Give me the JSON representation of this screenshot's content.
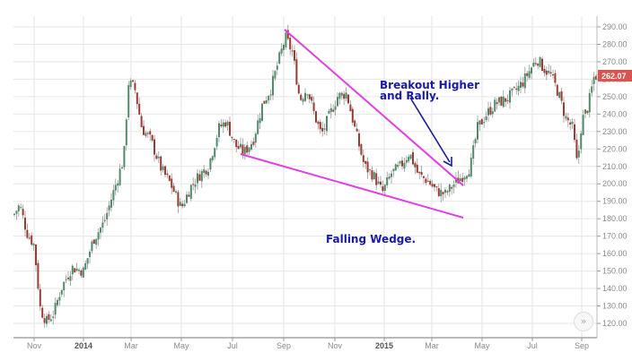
{
  "chart_data": {
    "type": "candlestick",
    "title": "",
    "xlabel": "",
    "ylabel": "",
    "ylim": [
      115,
      295
    ],
    "y_ticks": [
      "290.00",
      "280.00",
      "270.00",
      "260.00",
      "250.00",
      "240.00",
      "230.00",
      "220.00",
      "210.00",
      "200.00",
      "190.00",
      "180.00",
      "170.00",
      "160.00",
      "150.00",
      "140.00",
      "130.00",
      "120.00"
    ],
    "y_tick_values": [
      290,
      280,
      270,
      260,
      250,
      240,
      230,
      220,
      210,
      200,
      190,
      180,
      170,
      160,
      150,
      140,
      130,
      120
    ],
    "x_ticks": [
      {
        "label": "Nov",
        "bold": false
      },
      {
        "label": "2014",
        "bold": true
      },
      {
        "label": "Mar",
        "bold": false
      },
      {
        "label": "May",
        "bold": false
      },
      {
        "label": "Jul",
        "bold": false
      },
      {
        "label": "Sep",
        "bold": false
      },
      {
        "label": "Nov",
        "bold": false
      },
      {
        "label": "2015",
        "bold": true
      },
      {
        "label": "Mar",
        "bold": false
      },
      {
        "label": "May",
        "bold": false
      },
      {
        "label": "Jul",
        "bold": false
      },
      {
        "label": "Sep",
        "bold": false
      }
    ],
    "grid": true,
    "last_price": "262.07",
    "colors": {
      "up": "#4f8a6a",
      "down": "#9b3a30",
      "wedge": "#e040e0",
      "arrow": "#1a1a9a",
      "annotation": "#1a1aa6",
      "last_price_bg": "#d9534f",
      "grid": "#e6e6e6",
      "axis": "#bbbbbb"
    },
    "approx_closes": [
      {
        "date": "2013-10",
        "close": 180
      },
      {
        "date": "2013-11",
        "close": 168
      },
      {
        "date": "2013-12",
        "close": 122
      },
      {
        "date": "2014-01",
        "close": 150
      },
      {
        "date": "2014-02",
        "close": 185
      },
      {
        "date": "2014-03",
        "close": 258
      },
      {
        "date": "2014-04",
        "close": 215
      },
      {
        "date": "2014-05",
        "close": 183
      },
      {
        "date": "2014-06",
        "close": 205
      },
      {
        "date": "2014-07",
        "close": 225
      },
      {
        "date": "2014-08",
        "close": 245
      },
      {
        "date": "2014-09",
        "close": 282
      },
      {
        "date": "2014-10",
        "close": 230
      },
      {
        "date": "2014-11",
        "close": 255
      },
      {
        "date": "2014-12",
        "close": 205
      },
      {
        "date": "2015-01",
        "close": 195
      },
      {
        "date": "2015-02",
        "close": 215
      },
      {
        "date": "2015-03",
        "close": 190
      },
      {
        "date": "2015-04",
        "close": 210
      },
      {
        "date": "2015-05",
        "close": 240
      },
      {
        "date": "2015-06",
        "close": 265
      },
      {
        "date": "2015-07",
        "close": 270
      },
      {
        "date": "2015-08",
        "close": 230
      },
      {
        "date": "2015-09",
        "close": 262
      }
    ],
    "annotations": [
      {
        "text": "Breakout Higher",
        "type": "label"
      },
      {
        "text": "and Rally.",
        "type": "label"
      },
      {
        "text": "Falling Wedge.",
        "type": "label"
      }
    ],
    "trendlines": [
      {
        "name": "upper-wedge",
        "from": {
          "date": "2014-09",
          "price": 289
        },
        "to": {
          "date": "2015-04",
          "price": 200
        }
      },
      {
        "name": "lower-wedge",
        "from": {
          "date": "2014-07",
          "price": 218
        },
        "to": {
          "date": "2015-04",
          "price": 181
        }
      }
    ]
  },
  "annotations": {
    "breakout_line1": "Breakout Higher",
    "breakout_line2": "and Rally.",
    "wedge_label": "Falling Wedge."
  },
  "axis": {
    "last_price": "262.07"
  },
  "controls": {
    "scroll_right": "»"
  }
}
